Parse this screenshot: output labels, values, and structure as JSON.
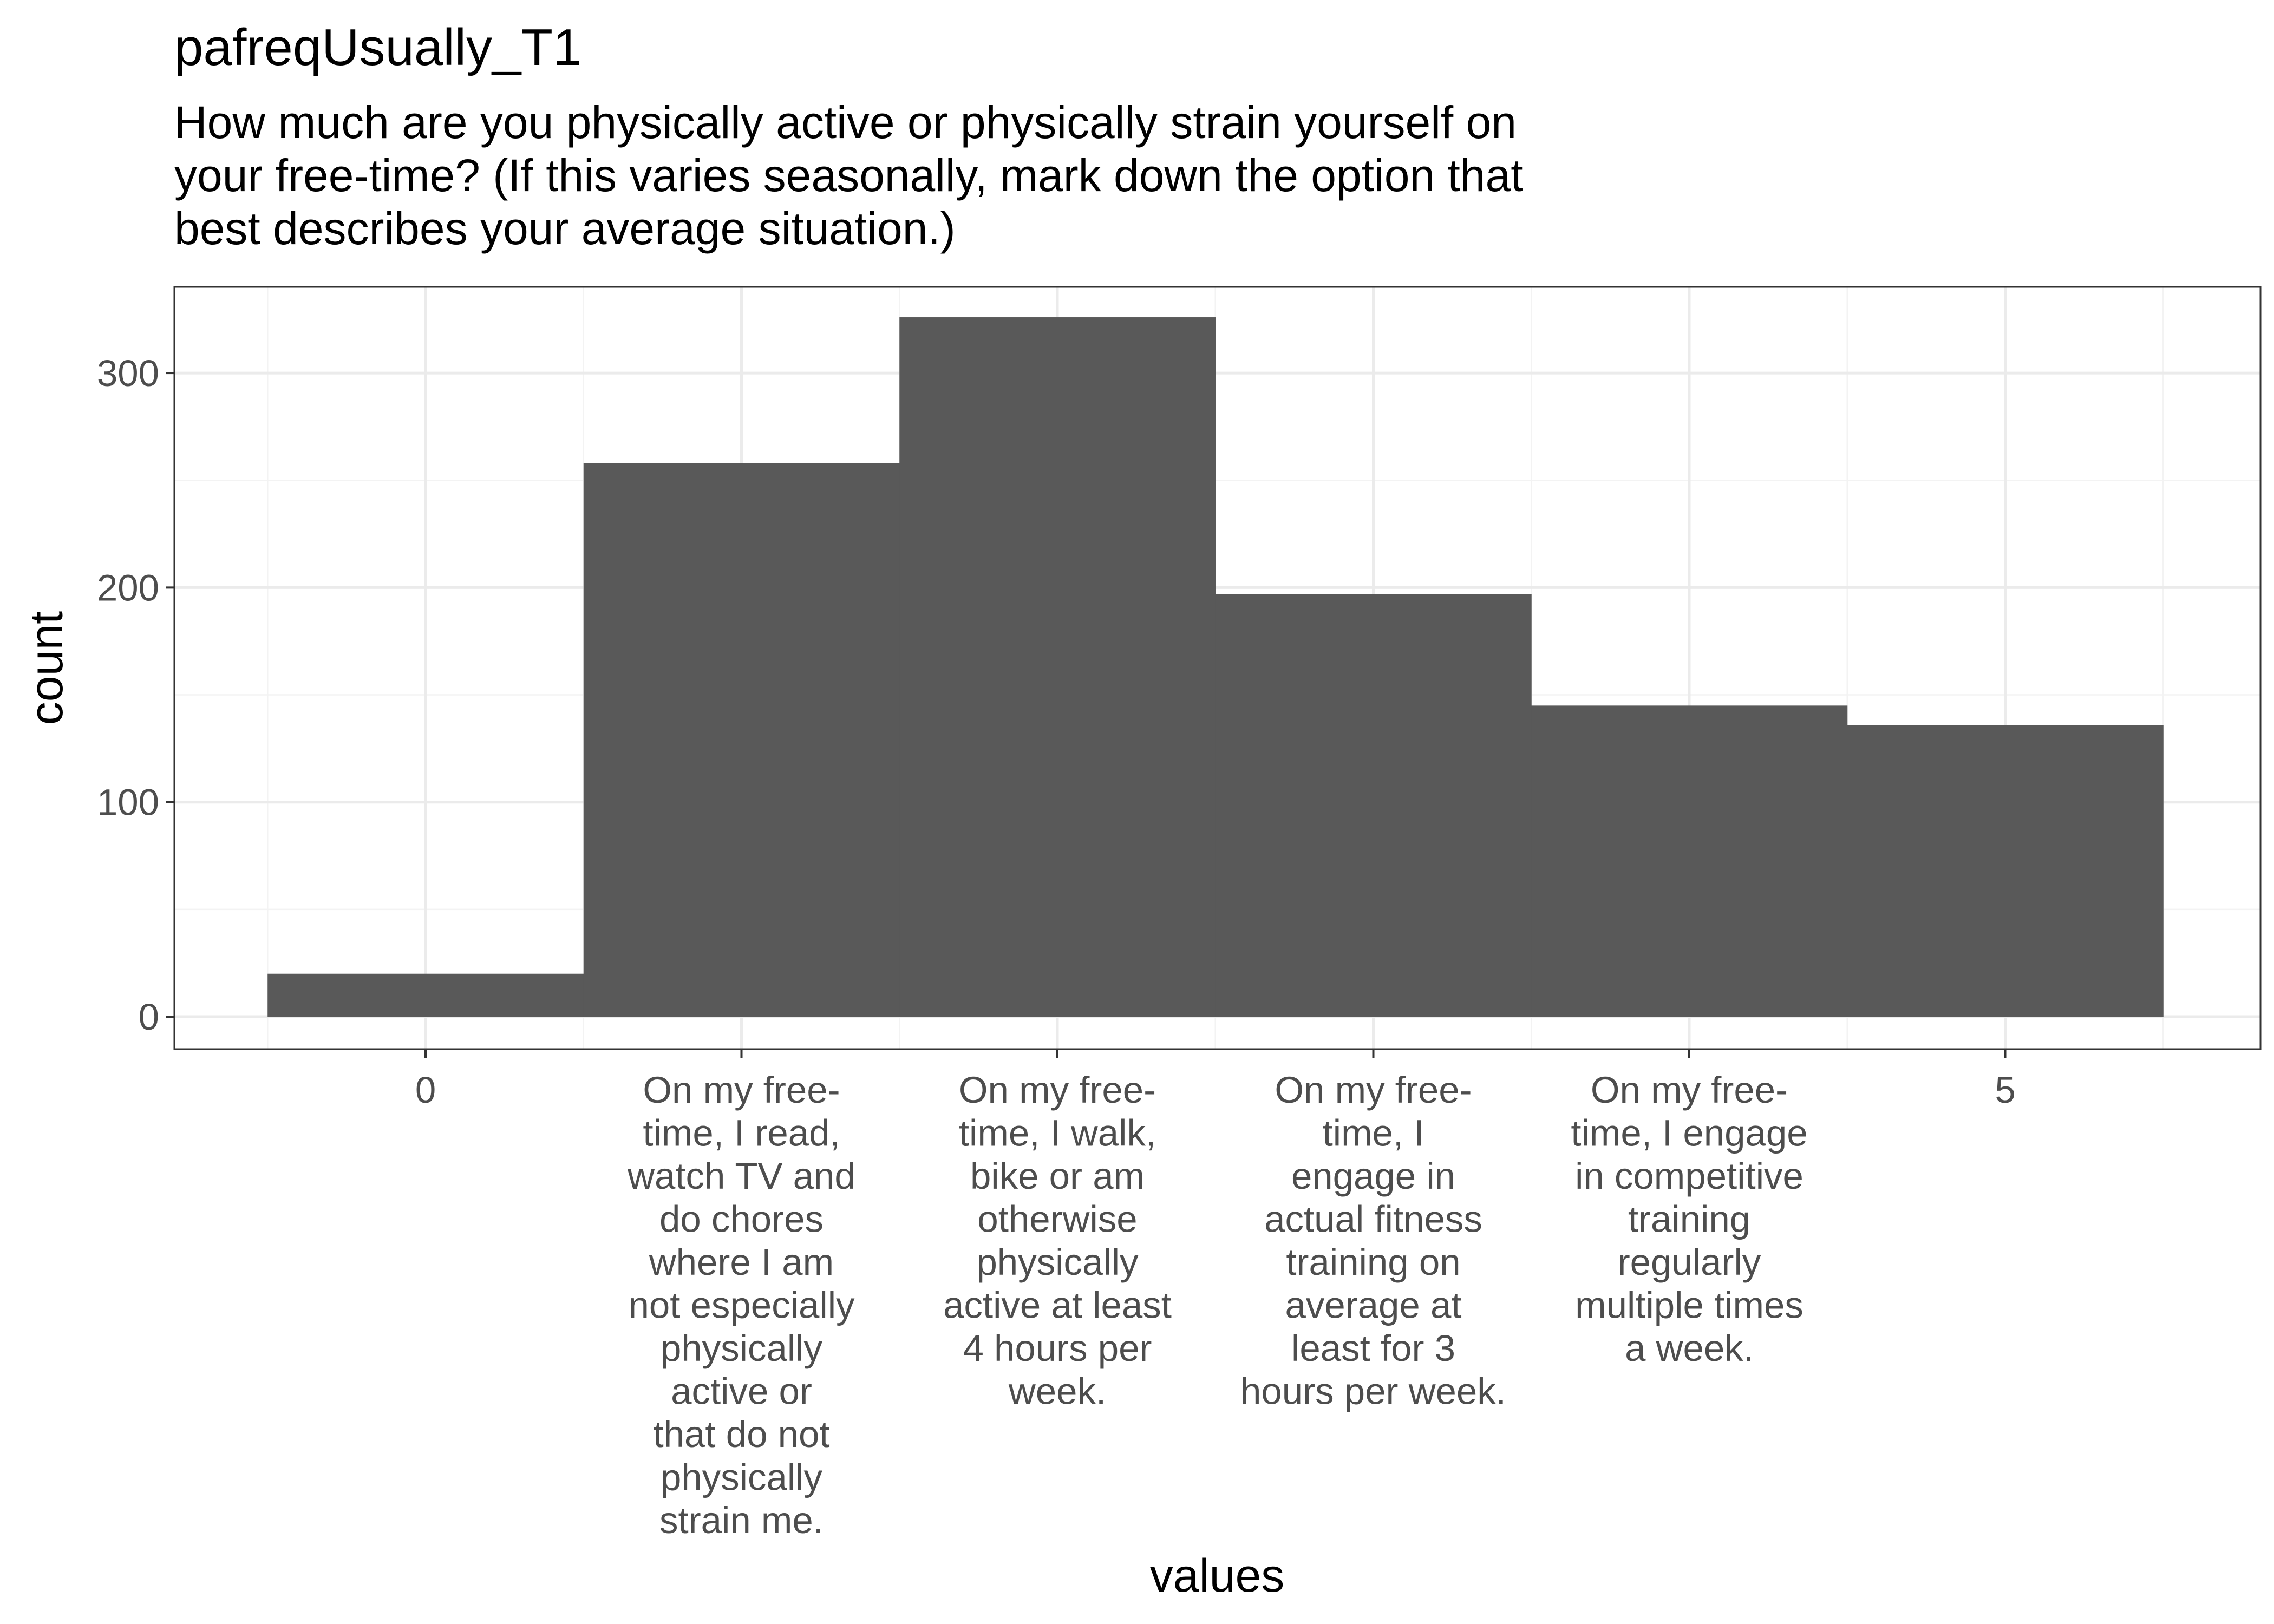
{
  "chart_data": {
    "type": "bar",
    "title": "pafreqUsually_T1",
    "subtitle": [
      "How much are you physically active or physically strain yourself on",
      "your free-time? (If this varies seasonally, mark down the option that",
      "best describes your average situation.)"
    ],
    "xlabel": "values",
    "ylabel": "count",
    "categories": [
      [
        "0"
      ],
      [
        "On my free-",
        "time, I read,",
        "watch TV and",
        "do chores",
        "where I am",
        "not especially",
        "physically",
        "active or",
        "that do not",
        "physically",
        "strain me."
      ],
      [
        "On my free-",
        "time, I walk,",
        "bike or am",
        "otherwise",
        "physically",
        "active at least",
        "4 hours per",
        "week."
      ],
      [
        "On my free-",
        "time, I",
        "engage in",
        "actual fitness",
        "training on",
        "average at",
        "least for 3",
        "hours per week."
      ],
      [
        "On my free-",
        "time, I engage",
        "in competitive",
        "training",
        "regularly",
        "multiple times",
        "a week."
      ],
      [
        "5"
      ]
    ],
    "values": [
      20,
      258,
      326,
      197,
      145,
      136
    ],
    "ylim": [
      0,
      340
    ],
    "yticks": [
      0,
      100,
      200,
      300
    ],
    "grid": true,
    "legend": "none",
    "colors": {
      "bar": "#595959",
      "panel_border": "#333333",
      "grid_major": "#ebebeb",
      "grid_minor": "#f3f3f3",
      "tick_text": "#4d4d4d"
    }
  }
}
